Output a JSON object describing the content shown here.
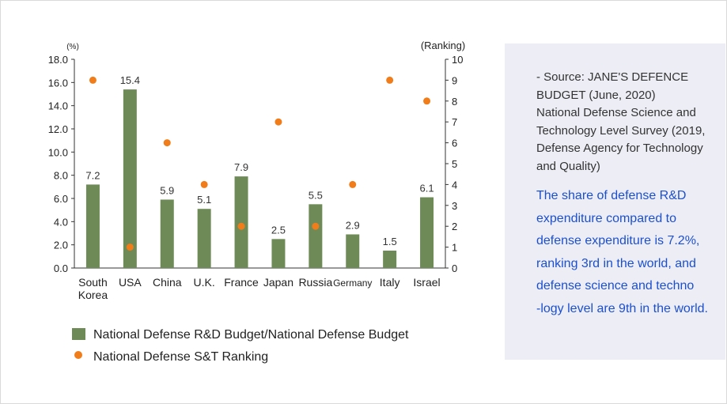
{
  "chart_data": {
    "type": "bar",
    "categories": [
      [
        "South",
        "Korea"
      ],
      [
        "USA"
      ],
      [
        "China"
      ],
      [
        "U.K."
      ],
      [
        "France"
      ],
      [
        "Japan"
      ],
      [
        "Russia"
      ],
      [
        "Germany"
      ],
      [
        "Italy"
      ],
      [
        "Israel"
      ]
    ],
    "series": [
      {
        "name": "National Defense R&D Budget/National Defense Budget",
        "type": "bar",
        "axis": "left",
        "color": "#6e8b57",
        "values": [
          7.2,
          15.4,
          5.9,
          5.1,
          7.9,
          2.5,
          5.5,
          2.9,
          1.5,
          6.1
        ],
        "labels": [
          "7.2",
          "15.4",
          "5.9",
          "5.1",
          "7.9",
          "2.5",
          "5.5",
          "2.9",
          "1.5",
          "6.1"
        ]
      },
      {
        "name": "National Defense S&T Ranking",
        "type": "scatter",
        "axis": "right",
        "color": "#f07d1a",
        "values": [
          9,
          1,
          6,
          4,
          2,
          7,
          2,
          4,
          9,
          8
        ]
      }
    ],
    "y_left": {
      "unit": "(%)",
      "ylim": [
        0,
        18
      ],
      "ticks": [
        "0.0",
        "2.0",
        "4.0",
        "6.0",
        "8.0",
        "10.0",
        "12.0",
        "14.0",
        "16.0",
        "18.0"
      ]
    },
    "y_right": {
      "unit": "(Ranking)",
      "ylim": [
        0,
        10
      ],
      "ticks": [
        "0",
        "1",
        "2",
        "3",
        "4",
        "5",
        "6",
        "7",
        "8",
        "9",
        "10"
      ]
    },
    "grid": false,
    "legend_position": "bottom-left"
  },
  "info": {
    "source_lines": [
      "- Source: JANE'S DEFENCE",
      "BUDGET (June, 2020)",
      "National Defense Science and",
      "Technology Level Survey (2019,",
      "Defense Agency for Technology",
      "and Quality)"
    ],
    "highlight_lines": [
      "The share of defense R&D",
      "expenditure compared to",
      "defense expenditure is 7.2%,",
      "ranking 3rd in the world, and",
      "defense science and techno",
      "-logy  level are 9th in the world."
    ],
    "highlight_color": "#1c4fcf"
  }
}
